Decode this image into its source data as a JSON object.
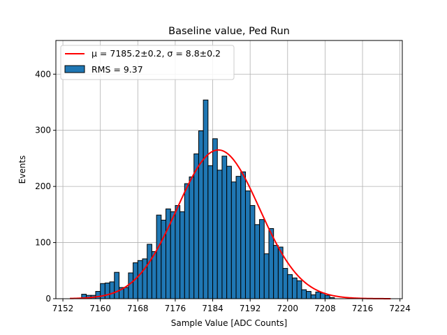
{
  "chart_data": {
    "type": "bar",
    "title": "Baseline value, Ped Run",
    "xlabel": "Sample Value [ADC Counts]",
    "ylabel": "Events",
    "xlim": [
      7150.5,
      7224.5
    ],
    "ylim": [
      0,
      460
    ],
    "xticks": [
      7152,
      7160,
      7168,
      7176,
      7184,
      7192,
      7200,
      7208,
      7216,
      7224
    ],
    "yticks": [
      0,
      100,
      200,
      300,
      400
    ],
    "grid": true,
    "legend_placement": "top-left",
    "bin_width": 1,
    "bin_start": 7155,
    "counts": [
      1,
      8,
      6,
      6,
      13,
      27,
      28,
      30,
      47,
      20,
      20,
      46,
      64,
      68,
      71,
      97,
      84,
      149,
      140,
      160,
      155,
      166,
      155,
      205,
      217,
      258,
      299,
      354,
      237,
      285,
      229,
      254,
      236,
      208,
      218,
      226,
      192,
      166,
      132,
      141,
      80,
      125,
      95,
      92,
      54,
      43,
      37,
      32,
      16,
      13,
      7,
      12,
      10,
      6,
      2
    ],
    "histogram_color": "#1f77b4",
    "histogram_edge": "#000000",
    "histogram_label": "RMS = 9.37",
    "fit": {
      "type": "gaussian",
      "mu": 7185.2,
      "sigma": 8.8,
      "peak": 265,
      "x_range": [
        7153.5,
        7222
      ],
      "color": "#ff0000",
      "label_mu": "μ = 7185.2±0.2",
      "label_sigma": "σ = 8.8±0.2"
    }
  }
}
